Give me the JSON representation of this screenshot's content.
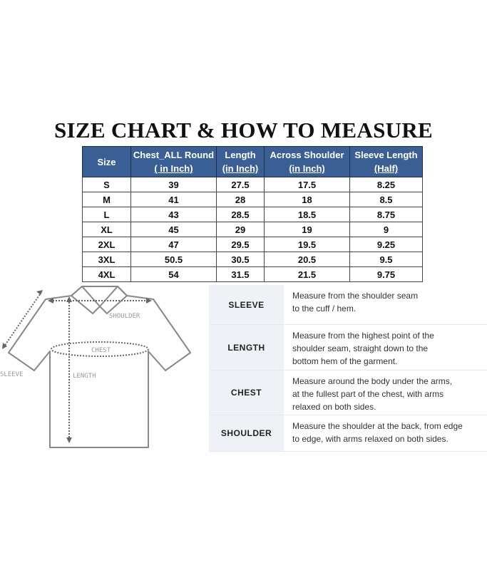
{
  "title": "SIZE CHART & HOW TO MEASURE",
  "table": {
    "headers": [
      [
        "Size"
      ],
      [
        "Chest_ALL Round",
        "( in Inch)"
      ],
      [
        "Length",
        "(in Inch)"
      ],
      [
        "Across Shoulder",
        "(in Inch)"
      ],
      [
        "Sleeve Length",
        "(Half)"
      ]
    ],
    "rows": [
      [
        "S",
        "39",
        "27.5",
        "17.5",
        "8.25"
      ],
      [
        "M",
        "41",
        "28",
        "18",
        "8.5"
      ],
      [
        "L",
        "43",
        "28.5",
        "18.5",
        "8.75"
      ],
      [
        "XL",
        "45",
        "29",
        "19",
        "9"
      ],
      [
        "2XL",
        "47",
        "29.5",
        "19.5",
        "9.25"
      ],
      [
        "3XL",
        "50.5",
        "30.5",
        "20.5",
        "9.5"
      ],
      [
        "4XL",
        "54",
        "31.5",
        "21.5",
        "9.75"
      ]
    ]
  },
  "diagram": {
    "shoulder": "SHOULDER",
    "chest": "CHEST",
    "sleeve": "SLEEVE",
    "length": "LENGTH"
  },
  "measure": [
    {
      "label": "SLEEVE",
      "lines": [
        "Measure from the shoulder seam",
        "to the cuff / hem."
      ]
    },
    {
      "label": "LENGTH",
      "lines": [
        "Measure from the highest point of the",
        "shoulder seam, straight down to the",
        "bottom hem of the garment."
      ]
    },
    {
      "label": "CHEST",
      "lines": [
        "Measure around the body under the arms,",
        "at the fullest part of the chest, with arms",
        "relaxed on both sides."
      ]
    },
    {
      "label": "SHOULDER",
      "lines": [
        "Measure the shoulder at the back, from edge",
        "to edge, with arms relaxed on both sides."
      ]
    }
  ],
  "colors": {
    "header": "#3a5f94",
    "panel": "#eef1f6"
  }
}
